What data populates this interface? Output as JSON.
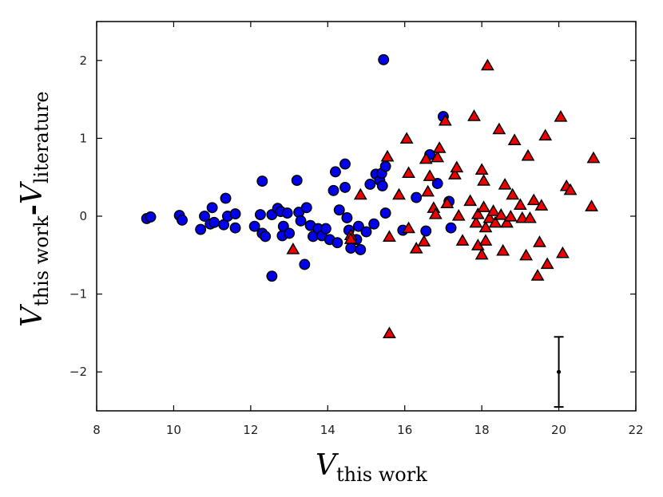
{
  "chart_data": {
    "type": "scatter",
    "xlabel": {
      "main": "V",
      "sub": "this work"
    },
    "ylabel": {
      "main1": "V",
      "sub1": "this work",
      "sep": "-",
      "main2": "V",
      "sub2": "literature"
    },
    "xlim": [
      8,
      22
    ],
    "ylim": [
      -2.5,
      2.5
    ],
    "xticks": [
      8,
      10,
      12,
      14,
      16,
      18,
      20,
      22
    ],
    "yticks": [
      -2,
      -1,
      0,
      1,
      2
    ],
    "grid": false,
    "series": [
      {
        "marker": "circle",
        "color": "#0000ee",
        "points": [
          [
            9.3,
            -0.03
          ],
          [
            9.4,
            -0.01
          ],
          [
            10.15,
            0.01
          ],
          [
            10.22,
            -0.05
          ],
          [
            10.7,
            -0.17
          ],
          [
            10.8,
            0.0
          ],
          [
            10.95,
            -0.1
          ],
          [
            11.0,
            0.11
          ],
          [
            11.05,
            -0.08
          ],
          [
            11.3,
            -0.11
          ],
          [
            11.35,
            0.23
          ],
          [
            11.4,
            0.0
          ],
          [
            11.6,
            0.03
          ],
          [
            11.6,
            -0.15
          ],
          [
            12.1,
            -0.13
          ],
          [
            12.25,
            0.02
          ],
          [
            12.3,
            0.45
          ],
          [
            12.3,
            -0.22
          ],
          [
            12.38,
            -0.26
          ],
          [
            12.55,
            0.02
          ],
          [
            12.55,
            -0.77
          ],
          [
            12.7,
            0.1
          ],
          [
            12.78,
            0.06
          ],
          [
            12.82,
            -0.25
          ],
          [
            12.85,
            -0.13
          ],
          [
            12.95,
            0.04
          ],
          [
            13.0,
            -0.22
          ],
          [
            13.2,
            0.46
          ],
          [
            13.25,
            0.05
          ],
          [
            13.3,
            -0.06
          ],
          [
            13.4,
            -0.62
          ],
          [
            13.45,
            0.11
          ],
          [
            13.55,
            -0.12
          ],
          [
            13.62,
            -0.26
          ],
          [
            13.75,
            -0.16
          ],
          [
            13.85,
            -0.25
          ],
          [
            13.95,
            -0.16
          ],
          [
            14.05,
            -0.3
          ],
          [
            14.15,
            0.33
          ],
          [
            14.2,
            0.57
          ],
          [
            14.25,
            -0.34
          ],
          [
            14.3,
            0.08
          ],
          [
            14.45,
            0.67
          ],
          [
            14.45,
            0.37
          ],
          [
            14.5,
            -0.02
          ],
          [
            14.55,
            -0.18
          ],
          [
            14.6,
            -0.41
          ],
          [
            14.75,
            -0.3
          ],
          [
            14.8,
            -0.13
          ],
          [
            14.85,
            -0.43
          ],
          [
            15.0,
            -0.2
          ],
          [
            15.1,
            0.41
          ],
          [
            15.2,
            -0.1
          ],
          [
            15.25,
            0.54
          ],
          [
            15.35,
            0.46
          ],
          [
            15.4,
            0.55
          ],
          [
            15.42,
            0.39
          ],
          [
            15.45,
            2.01
          ],
          [
            15.5,
            0.64
          ],
          [
            15.5,
            0.04
          ],
          [
            15.95,
            -0.18
          ],
          [
            16.3,
            0.24
          ],
          [
            16.55,
            -0.19
          ],
          [
            16.65,
            0.79
          ],
          [
            16.85,
            0.42
          ],
          [
            17.0,
            1.28
          ],
          [
            17.15,
            0.19
          ],
          [
            17.2,
            -0.15
          ]
        ]
      },
      {
        "marker": "triangle",
        "color": "#ee0000",
        "points": [
          [
            13.1,
            -0.43
          ],
          [
            14.6,
            -0.25
          ],
          [
            14.6,
            -0.3
          ],
          [
            14.85,
            0.27
          ],
          [
            15.55,
            0.76
          ],
          [
            15.6,
            -0.27
          ],
          [
            15.6,
            -1.51
          ],
          [
            15.85,
            0.27
          ],
          [
            16.05,
            0.99
          ],
          [
            16.1,
            0.55
          ],
          [
            16.1,
            -0.16
          ],
          [
            16.3,
            -0.42
          ],
          [
            16.5,
            -0.33
          ],
          [
            16.55,
            0.73
          ],
          [
            16.6,
            0.31
          ],
          [
            16.65,
            0.51
          ],
          [
            16.75,
            0.1
          ],
          [
            16.8,
            0.02
          ],
          [
            16.85,
            0.75
          ],
          [
            16.9,
            0.87
          ],
          [
            17.05,
            1.22
          ],
          [
            17.1,
            0.16
          ],
          [
            17.3,
            0.53
          ],
          [
            17.35,
            0.62
          ],
          [
            17.4,
            0.0
          ],
          [
            17.5,
            -0.32
          ],
          [
            17.7,
            0.19
          ],
          [
            17.8,
            1.28
          ],
          [
            17.85,
            -0.09
          ],
          [
            17.9,
            -0.38
          ],
          [
            17.9,
            0.02
          ],
          [
            18.0,
            0.59
          ],
          [
            18.0,
            -0.5
          ],
          [
            18.05,
            0.11
          ],
          [
            18.05,
            0.45
          ],
          [
            18.1,
            -0.32
          ],
          [
            18.1,
            -0.15
          ],
          [
            18.15,
            1.93
          ],
          [
            18.2,
            -0.03
          ],
          [
            18.3,
            0.06
          ],
          [
            18.35,
            -0.09
          ],
          [
            18.45,
            1.11
          ],
          [
            18.5,
            0.01
          ],
          [
            18.55,
            -0.45
          ],
          [
            18.6,
            0.4
          ],
          [
            18.65,
            -0.09
          ],
          [
            18.75,
            -0.01
          ],
          [
            18.8,
            0.27
          ],
          [
            18.85,
            0.97
          ],
          [
            19.0,
            0.14
          ],
          [
            19.05,
            -0.03
          ],
          [
            19.15,
            -0.51
          ],
          [
            19.2,
            0.77
          ],
          [
            19.25,
            -0.03
          ],
          [
            19.35,
            0.2
          ],
          [
            19.45,
            -0.77
          ],
          [
            19.5,
            -0.34
          ],
          [
            19.55,
            0.13
          ],
          [
            19.65,
            1.03
          ],
          [
            19.7,
            -0.62
          ],
          [
            20.05,
            1.27
          ],
          [
            20.1,
            -0.48
          ],
          [
            20.2,
            0.38
          ],
          [
            20.3,
            0.33
          ],
          [
            20.85,
            0.12
          ],
          [
            20.9,
            0.74
          ]
        ]
      }
    ],
    "errorbar": {
      "x": 20.0,
      "y": -2.0,
      "yerr": 0.45
    }
  }
}
